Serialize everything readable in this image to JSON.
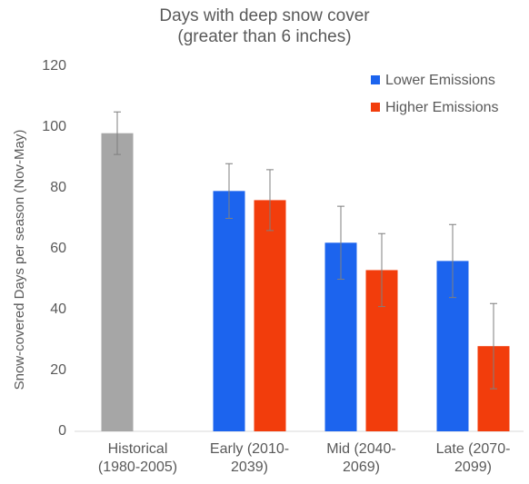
{
  "chart_data": {
    "type": "bar",
    "title": "Days with deep snow cover\n(greater than 6 inches)",
    "y_label": "Snow-covered Days per season (Nov-May)",
    "categories": [
      "Historical\n(1980-2005)",
      "Early (2010-\n2039)",
      "Mid (2040-\n2069)",
      "Late (2070-\n2099)"
    ],
    "series": [
      {
        "name": "Lower Emissions",
        "color": "#1c64ee",
        "colors": [
          "#a6a6a6",
          "#1c64ee",
          "#1c64ee",
          "#1c64ee"
        ],
        "values": [
          98,
          79,
          62,
          56
        ],
        "errors": [
          7,
          9,
          12,
          12
        ]
      },
      {
        "name": "Higher Emissions",
        "color": "#f23d0c",
        "values": [
          null,
          76,
          53,
          28
        ],
        "errors": [
          null,
          10,
          12,
          14
        ]
      }
    ],
    "ylim": [
      0,
      120
    ],
    "yticks": [
      0,
      20,
      40,
      60,
      80,
      100,
      120
    ],
    "legend": "top-right",
    "grid": false
  }
}
